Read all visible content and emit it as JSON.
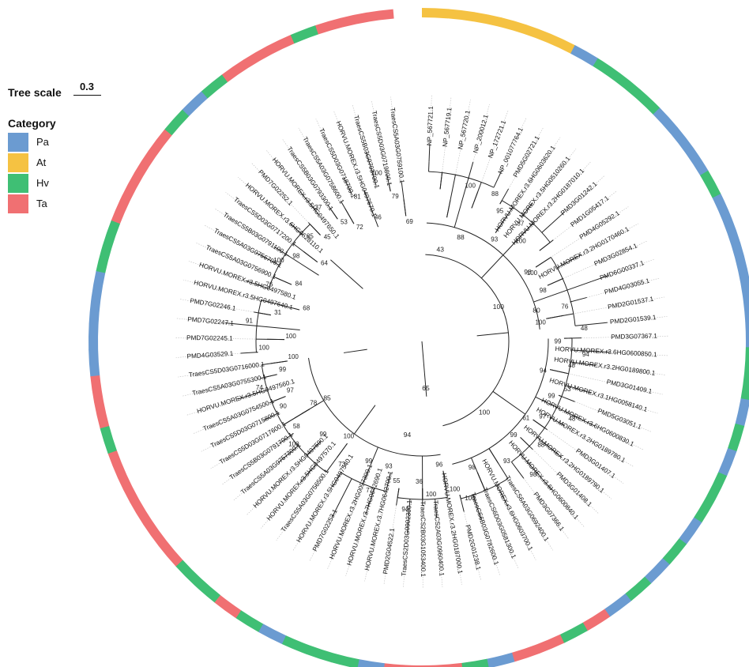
{
  "tree_scale": {
    "label": "Tree scale",
    "value": "0.3"
  },
  "legend": {
    "title": "Category",
    "items": [
      {
        "label": "Pa",
        "color": "#6b9bd1"
      },
      {
        "label": "At",
        "color": "#f5c242"
      },
      {
        "label": "Hv",
        "color": "#3fbf74"
      },
      {
        "label": "Ta",
        "color": "#f07072"
      }
    ]
  },
  "center_label": "65",
  "leaves": [
    {
      "name": "NP_567721.1",
      "cat": "At",
      "bs": ""
    },
    {
      "name": "NP_567719.1",
      "cat": "At",
      "bs": ""
    },
    {
      "name": "NP_567720.1",
      "cat": "At",
      "bs": ""
    },
    {
      "name": "NP_200012.1",
      "cat": "At",
      "bs": "100"
    },
    {
      "name": "NP_172721.1",
      "cat": "At",
      "bs": ""
    },
    {
      "name": "NP_001077764.1",
      "cat": "At",
      "bs": "88"
    },
    {
      "name": "PMD5G02721.1",
      "cat": "Pa",
      "bs": "95"
    },
    {
      "name": "HORVU.MOREX.r3.6HG0603620.1",
      "cat": "Hv",
      "bs": "93"
    },
    {
      "name": "HORVU.MOREX.r3.5HG0510260.1",
      "cat": "Hv",
      "bs": "87"
    },
    {
      "name": "HORVU.MOREX.r3.2HG0187010.1",
      "cat": "Hv",
      "bs": "100"
    },
    {
      "name": "PMD3G01242.1",
      "cat": "Pa",
      "bs": ""
    },
    {
      "name": "PMD1G05417.1",
      "cat": "Pa",
      "bs": ""
    },
    {
      "name": "PMD4G05292.1",
      "cat": "Pa",
      "bs": "100"
    },
    {
      "name": "HORVU.MOREX.r3.2HG0170460.1",
      "cat": "Hv",
      "bs": ""
    },
    {
      "name": "PMD3G02854.1",
      "cat": "Pa",
      "bs": "98"
    },
    {
      "name": "PMD6G00337.1",
      "cat": "Pa",
      "bs": ""
    },
    {
      "name": "PMD4G03055.1",
      "cat": "Pa",
      "bs": "76"
    },
    {
      "name": "PMD2G01537.1",
      "cat": "Pa",
      "bs": "100"
    },
    {
      "name": "PMD2G01539.1",
      "cat": "Pa",
      "bs": "48"
    },
    {
      "name": "PMD3G07367.1",
      "cat": "Pa",
      "bs": "99"
    },
    {
      "name": "HORVU.MOREX.r3.6HG0600850.1",
      "cat": "Hv",
      "bs": "94"
    },
    {
      "name": "HORVU.MOREX.r3.2HG0189800.1",
      "cat": "Hv",
      "bs": "48"
    },
    {
      "name": "PMD3G01409.1",
      "cat": "Pa",
      "bs": "94"
    },
    {
      "name": "HORVU.MOREX.r3.1HG0058140.1",
      "cat": "Hv",
      "bs": "53"
    },
    {
      "name": "PMD5G03051.1",
      "cat": "Pa",
      "bs": "99"
    },
    {
      "name": "HORVU.MOREX.r3.6HG0600830.1",
      "cat": "Hv",
      "bs": "48"
    },
    {
      "name": "HORVU.MOREX.r3.2HG0189780.1",
      "cat": "Hv",
      "bs": "97"
    },
    {
      "name": "PMD3G01407.1",
      "cat": "Pa",
      "bs": "61"
    },
    {
      "name": "HORVU.MOREX.r3.2HG0189790.1",
      "cat": "Hv",
      "bs": "88"
    },
    {
      "name": "PMD3G01408.1",
      "cat": "Pa",
      "bs": "99"
    },
    {
      "name": "HORVU.MOREX.r3.6HG0600840.1",
      "cat": "Hv",
      "bs": "98"
    },
    {
      "name": "PMD3G07366.1",
      "cat": "Pa",
      "bs": "93"
    },
    {
      "name": "TraesCS6A03G0692400.1",
      "cat": "Ta",
      "bs": ""
    },
    {
      "name": "HORVU.MOREX.r3.6HG0603700.1",
      "cat": "Hv",
      "bs": ""
    },
    {
      "name": "TraesCS6D03G0581300.1",
      "cat": "Ta",
      "bs": "98"
    },
    {
      "name": "TraesCS6B03G0782600.1",
      "cat": "Ta",
      "bs": "100"
    },
    {
      "name": "PMD2G01238.1",
      "cat": "Pa",
      "bs": "100"
    },
    {
      "name": "HORVU.MOREX.r3.2HG0187000.1",
      "cat": "Hv",
      "bs": "96"
    },
    {
      "name": "TraesCS2A03G0960400.1",
      "cat": "Ta",
      "bs": "100"
    },
    {
      "name": "TraesCS2B03G1053400.1",
      "cat": "Ta",
      "bs": "36"
    },
    {
      "name": "TraesCS2D03G0902300.1",
      "cat": "Ta",
      "bs": "94"
    },
    {
      "name": "PMD2G04522.1",
      "cat": "Pa",
      "bs": "55"
    },
    {
      "name": "HORVU.MOREX.r3.7HG0642700.1",
      "cat": "Hv",
      "bs": "93"
    },
    {
      "name": "HORVU.MOREX.r3.7HG0642690.1",
      "cat": "Hv",
      "bs": "77"
    },
    {
      "name": "HORVU.MOREX.r3.2HG0097300.1",
      "cat": "Hv",
      "bs": "99"
    },
    {
      "name": "PMD7G02253.1",
      "cat": "Pa",
      "bs": ""
    },
    {
      "name": "HORVU.MOREX.r3.5HG0497540.1",
      "cat": "Hv",
      "bs": "73"
    },
    {
      "name": "TraesCS5A03G0756500.1",
      "cat": "Ta",
      "bs": "100"
    },
    {
      "name": "HORVU.MOREX.r3.5HG0497570.1",
      "cat": "Hv",
      "bs": ""
    },
    {
      "name": "HORVU.MOREX.r3.5HG0497590.1",
      "cat": "Hv",
      "bs": "99"
    },
    {
      "name": "TraesCS5A03G0757300.1",
      "cat": "Ta",
      "bs": "100"
    },
    {
      "name": "TraesCS5B03G0791700.1",
      "cat": "Ta",
      "bs": "58"
    },
    {
      "name": "TraesCS5D03G0717600.1",
      "cat": "Ta",
      "bs": "78"
    },
    {
      "name": "TraesCS5D03G0715800.1",
      "cat": "Ta",
      "bs": "90"
    },
    {
      "name": "TraesCS5A03G0754500.1",
      "cat": "Ta",
      "bs": "97"
    },
    {
      "name": "HORVU.MOREX.r3.5HG0497560.1",
      "cat": "Hv",
      "bs": "74"
    },
    {
      "name": "TraesCS5A03G0755300.1",
      "cat": "Ta",
      "bs": "99"
    },
    {
      "name": "TraesCS5D03G0716000.1",
      "cat": "Ta",
      "bs": "100"
    },
    {
      "name": "PMD4G03529.1",
      "cat": "Pa",
      "bs": "100"
    },
    {
      "name": "PMD7G02245.1",
      "cat": "Pa",
      "bs": "100"
    },
    {
      "name": "PMD7G02247.1",
      "cat": "Pa",
      "bs": "91"
    },
    {
      "name": "PMD7G02246.1",
      "cat": "Pa",
      "bs": "31"
    },
    {
      "name": "HORVU.MOREX.r3.5HG0497640.1",
      "cat": "Hv",
      "bs": "68"
    },
    {
      "name": "HORVU.MOREX.r3.5HG0497580.1",
      "cat": "Hv",
      "bs": "76"
    },
    {
      "name": "TraesCS5A03G0756900.1",
      "cat": "Ta",
      "bs": "84"
    },
    {
      "name": "TraesCS5A03G0756700.1",
      "cat": "Ta",
      "bs": "100"
    },
    {
      "name": "TraesCS5B03G0791100.1",
      "cat": "Ta",
      "bs": "98"
    },
    {
      "name": "TraesCS5D03G0717200.1",
      "cat": "Ta",
      "bs": "64"
    },
    {
      "name": "HORVU.MOREX.r3.6HG0628110.1",
      "cat": "Hv",
      "bs": "85"
    },
    {
      "name": "PMD7G02252.1",
      "cat": "Pa",
      "bs": "45"
    },
    {
      "name": "HORVU.MOREX.r3.5HG0497650.1",
      "cat": "Hv",
      "bs": "37"
    },
    {
      "name": "TraesCS5B03G0793300.1",
      "cat": "Ta",
      "bs": "53"
    },
    {
      "name": "TraesCS5A03G0758600.1",
      "cat": "Ta",
      "bs": "72"
    },
    {
      "name": "TraesCS5D03G0718700.1",
      "cat": "Ta",
      "bs": "81"
    },
    {
      "name": "HORVU.MOREX.r3.5HG0497670.1",
      "cat": "Hv",
      "bs": "46"
    },
    {
      "name": "TraesCS5B03G0793700.1",
      "cat": "Ta",
      "bs": "100"
    },
    {
      "name": "TraesCS5D03G0719800.1",
      "cat": "Ta",
      "bs": "79"
    },
    {
      "name": "TraesCS5A03G0759100.1",
      "cat": "Ta",
      "bs": "69"
    }
  ],
  "inner_support": [
    "65",
    "88",
    "43",
    "100",
    "98",
    "80",
    "85",
    "94",
    "100"
  ]
}
